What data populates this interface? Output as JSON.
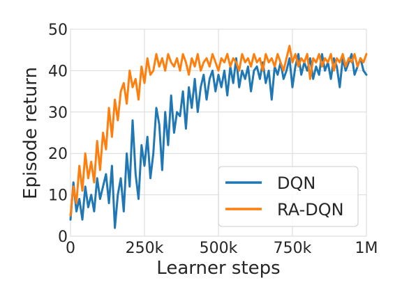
{
  "chart_data": {
    "type": "line",
    "title": "",
    "xlabel": "Learner steps",
    "ylabel": "Episode return",
    "xlim": [
      0,
      1000000
    ],
    "ylim": [
      0,
      50
    ],
    "grid": true,
    "legend_position": "bottom-right",
    "x_ticks": [
      {
        "value": 0,
        "label": "0"
      },
      {
        "value": 250000,
        "label": "250k"
      },
      {
        "value": 500000,
        "label": "500k"
      },
      {
        "value": 750000,
        "label": "750k"
      },
      {
        "value": 1000000,
        "label": "1M"
      }
    ],
    "y_ticks": [
      {
        "value": 0,
        "label": "0"
      },
      {
        "value": 10,
        "label": "10"
      },
      {
        "value": 20,
        "label": "20"
      },
      {
        "value": 30,
        "label": "30"
      },
      {
        "value": 40,
        "label": "40"
      },
      {
        "value": 50,
        "label": "50"
      }
    ],
    "series": [
      {
        "name": "DQN",
        "color": "#1f77b4",
        "x": [
          0,
          10000,
          20000,
          30000,
          40000,
          50000,
          60000,
          70000,
          80000,
          90000,
          100000,
          110000,
          120000,
          130000,
          140000,
          150000,
          160000,
          170000,
          180000,
          190000,
          200000,
          210000,
          220000,
          230000,
          240000,
          250000,
          260000,
          270000,
          280000,
          290000,
          300000,
          310000,
          320000,
          330000,
          340000,
          350000,
          360000,
          370000,
          380000,
          390000,
          400000,
          410000,
          420000,
          430000,
          440000,
          450000,
          460000,
          470000,
          480000,
          490000,
          500000,
          510000,
          520000,
          530000,
          540000,
          550000,
          560000,
          570000,
          580000,
          590000,
          600000,
          610000,
          620000,
          630000,
          640000,
          650000,
          660000,
          670000,
          680000,
          690000,
          700000,
          710000,
          720000,
          730000,
          740000,
          750000,
          760000,
          770000,
          780000,
          790000,
          800000,
          810000,
          820000,
          830000,
          840000,
          850000,
          860000,
          870000,
          880000,
          890000,
          900000,
          910000,
          920000,
          930000,
          940000,
          950000,
          960000,
          970000,
          980000,
          990000,
          1000000
        ],
        "values": [
          4,
          13,
          6,
          9,
          4,
          12,
          7,
          10,
          6,
          14,
          9,
          12,
          15,
          8,
          17,
          2,
          10,
          14,
          6,
          20,
          12,
          28,
          15,
          9,
          22,
          17,
          24,
          14,
          20,
          31,
          27,
          16,
          30,
          22,
          34,
          25,
          30,
          29,
          35,
          26,
          36,
          31,
          38,
          30,
          36,
          39,
          33,
          38,
          40,
          35,
          39,
          36,
          40,
          34,
          41,
          37,
          43,
          36,
          40,
          38,
          41,
          35,
          40,
          41,
          38,
          42,
          37,
          40,
          33,
          41,
          39,
          42,
          38,
          40,
          43,
          36,
          41,
          44,
          39,
          42,
          40,
          43,
          38,
          41,
          39,
          44,
          40,
          42,
          38,
          43,
          41,
          36,
          43,
          40,
          42,
          44,
          39,
          41,
          43,
          40,
          39
        ]
      },
      {
        "name": "RA-DQN",
        "color": "#ff7f0e",
        "x": [
          0,
          10000,
          20000,
          30000,
          40000,
          50000,
          60000,
          70000,
          80000,
          90000,
          100000,
          110000,
          120000,
          130000,
          140000,
          150000,
          160000,
          170000,
          180000,
          190000,
          200000,
          210000,
          220000,
          230000,
          240000,
          250000,
          260000,
          270000,
          280000,
          290000,
          300000,
          310000,
          320000,
          330000,
          340000,
          350000,
          360000,
          370000,
          380000,
          390000,
          400000,
          410000,
          420000,
          430000,
          440000,
          450000,
          460000,
          470000,
          480000,
          490000,
          500000,
          510000,
          520000,
          530000,
          540000,
          550000,
          560000,
          570000,
          580000,
          590000,
          600000,
          610000,
          620000,
          630000,
          640000,
          650000,
          660000,
          670000,
          680000,
          690000,
          700000,
          710000,
          720000,
          730000,
          740000,
          750000,
          760000,
          770000,
          780000,
          790000,
          800000,
          810000,
          820000,
          830000,
          840000,
          850000,
          860000,
          870000,
          880000,
          890000,
          900000,
          910000,
          920000,
          930000,
          940000,
          950000,
          960000,
          970000,
          980000,
          990000,
          1000000
        ],
        "values": [
          5,
          12,
          8,
          17,
          11,
          20,
          14,
          18,
          13,
          23,
          16,
          25,
          21,
          31,
          24,
          33,
          28,
          35,
          37,
          32,
          40,
          36,
          38,
          33,
          41,
          37,
          43,
          39,
          40,
          44,
          41,
          43,
          40,
          44,
          42,
          41,
          43,
          40,
          44,
          42,
          39,
          43,
          41,
          44,
          40,
          42,
          43,
          41,
          44,
          42,
          40,
          43,
          42,
          44,
          41,
          43,
          42,
          40,
          44,
          42,
          43,
          41,
          44,
          42,
          43,
          40,
          44,
          42,
          43,
          41,
          44,
          42,
          40,
          43,
          46,
          42,
          44,
          41,
          43,
          42,
          44,
          38,
          43,
          42,
          44,
          41,
          43,
          42,
          44,
          40,
          43,
          42,
          44,
          41,
          43,
          42,
          44,
          41,
          43,
          42,
          44
        ]
      }
    ]
  }
}
